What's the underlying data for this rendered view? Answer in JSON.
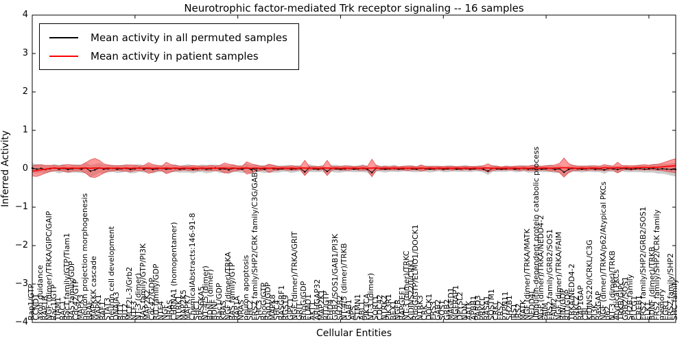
{
  "figure": {
    "title": "Neurotrophic factor-mediated Trk receptor signaling -- 16 samples",
    "xlabel": "Cellular Entities",
    "ylabel": "Inferred Activity",
    "sample_count_in_title": "16 samples"
  },
  "legend": {
    "items": [
      {
        "label": "Mean activity in all permuted samples",
        "color": "#000000"
      },
      {
        "label": "Mean activity in patient samples",
        "color": "#ff0000"
      }
    ]
  },
  "colors": {
    "permuted_line": "#000000",
    "patient_line": "#ff0000",
    "permuted_band": "#808080",
    "patient_band": "#ff4646",
    "background": "#ffffff",
    "axis": "#000000"
  },
  "chart_data": {
    "type": "line",
    "title": "Neurotrophic factor-mediated Trk receptor signaling -- 16 samples",
    "xlabel": "Cellular Entities",
    "ylabel": "Inferred Activity",
    "ylim": [
      -4,
      4
    ],
    "ytick_values": [
      4,
      3,
      2,
      1,
      0,
      -1,
      -2,
      -3,
      -4
    ],
    "ytick_labels": [
      "4",
      "3",
      "2",
      "1",
      "0",
      "−1",
      "−2",
      "−3",
      "−4"
    ],
    "x_major_tick_indices": [
      0,
      23,
      46,
      69,
      92,
      115,
      138
    ],
    "grid": false,
    "legend_position": "upper left",
    "entities": [
      "Rap1/GTP",
      "CCND1",
      "axon guidance",
      "RAP1B",
      "NGF (dimer)/TRKA/GIPC/GAIP",
      "Rac1/GTP",
      "TIAM1",
      "RAC1",
      "Rac1 family/GTP/Tiam1",
      "RAS family/GDP",
      "Cdc42/GTP",
      "MAPK3",
      "neuron projection morphogenesis",
      "BRAF",
      "MAPKKK cascade",
      "MAPK1",
      "RAF1",
      "STAT3",
      "neuron cell development",
      "DNAJA3",
      "RIT1",
      "RIT2",
      "MCF2L-3/Grb2",
      "NTF3",
      "NT-3 (dimer)",
      "RAS family/GTP/PI3K",
      "MAP2K2",
      "Cdc42/GDP",
      "RIT family/GDP",
      "NTF4",
      "NGF",
      "HRAS",
      "CHRNA1 (homopentamer)",
      "NTRK1",
      "MAP2K5",
      "MAPK7",
      "ChemicalAbstracts:146-91-8",
      "SHC1",
      "RPS6KA5",
      "NT-4/5 (dimer)",
      "BDNF (dimer)",
      "BDNF",
      "Rac1/GDP",
      "KRAS",
      "NGF (dimer)/TRKA",
      "RAS family/GTP",
      "RAP1A",
      "NRAS",
      "neuron apoptosis",
      "SHC2",
      "FRS2 family/SHP2/CRK family/C3G/GAB2",
      "SHC3",
      "RhoG/GTP",
      "Rap1/GDP",
      "MAPK8",
      "SHC4",
      "RASGRF1",
      "RGS19",
      "GIPC1",
      "NGF (dimer)/TRKA/GRIT",
      "GRIT",
      "RhoG/GDP",
      "ELMO1",
      "AKT1",
      "ARHGAP32",
      "MAP2K1",
      "RIT/GTP",
      "EHD4",
      "GRB2/SOS1/GAB1/PI3K",
      "SH2B2",
      "NT-4/5 (dimer)/TRKB",
      "GAB1",
      "APS",
      "STMN1",
      "ABL1",
      "PIK3CA",
      "NT-3 (dimer)",
      "SORT1",
      "CDC42",
      "NTRK2",
      "PIK3R1",
      "BEX1",
      "NGFR",
      "RAPGEF1",
      "NT-3 (dimer)/TRKC",
      "KIDINS220/CRKL",
      "RhoG/GTP/ELMO1/DOCK1",
      "NTRK3",
      "CRK",
      "DOCK1",
      "FRS3",
      "GAB2",
      "SOS1",
      "GRB2",
      "MAGED1",
      "NGFRAP1",
      "DPYSL2",
      "NDN",
      "AATK",
      "APBB1",
      "PARD3",
      "PRKCI",
      "RASA1",
      "SQSTM1",
      "CRKL",
      "FRS2",
      "PTPN11",
      "SH2B1",
      "IRS1",
      "IRS2",
      "MATK",
      "NGF (dimer)/TRKA/MATK",
      "NEDD4L",
      "ubiquitin-dependent protein catabolic process",
      "NGF (dimer)/TRKA/NEDD4-2",
      "FAIM",
      "FRS2 family/GRB2/SOS1",
      "FAIM2",
      "NGF (dimer)/TRKA/FAIM",
      "RIN/GDP",
      "RIT/GDP",
      "TRKA/NEDD4-2",
      "PRKCZ",
      "RAP1GAP",
      "CBL",
      "KIDINS220/CRKL/C3G",
      "PI3K",
      "RasGAP",
      "NGF (dimer)/TRKA/p62/Atypical PKCs",
      "p62",
      "NT-3 (dimer)/TRKB",
      "Atypical PKCs",
      "TRKB/GIPC",
      "GRB2/SOS1",
      "SH2B family",
      "PLCG1",
      "CREB1",
      "FRS2 family/SHP2/GRB2/SOS1",
      "ELK1",
      "BDNF (dimer)/TRKB",
      "FRS2 family/SHP2/CRK family",
      "memory",
      "EGR1",
      "FRS2 family/SHP2",
      "SHC family"
    ],
    "series": [
      {
        "name": "Mean activity in all permuted samples",
        "color": "#000000",
        "values": [
          0.02,
          -0.01,
          0.01,
          -0.02,
          0.0,
          0.02,
          -0.01,
          0.01,
          -0.02,
          0.0,
          0.01,
          -0.01,
          0.02,
          -0.06,
          -0.03,
          0.02,
          -0.01,
          0.0,
          0.01,
          -0.01,
          0.0,
          0.01,
          -0.02,
          0.0,
          0.02,
          -0.01,
          0.01,
          -0.02,
          0.0,
          0.01,
          -0.01,
          0.0,
          0.01,
          -0.01,
          0.0,
          0.01,
          -0.02,
          0.0,
          0.01,
          -0.01,
          0.0,
          0.02,
          -0.01,
          0.0,
          -0.03,
          0.01,
          0.0,
          -0.01,
          0.02,
          -0.02,
          0.01,
          0.0,
          -0.01,
          0.01,
          0.0,
          -0.01,
          0.0,
          0.01,
          -0.01,
          0.0,
          0.01,
          -0.08,
          0.02,
          0.0,
          -0.01,
          0.01,
          -0.07,
          0.01,
          0.0,
          -0.01,
          0.0,
          0.01,
          -0.01,
          0.0,
          0.01,
          -0.01,
          -0.1,
          0.02,
          0.0,
          -0.01,
          0.0,
          0.01,
          -0.01,
          0.0,
          0.01,
          0.0,
          -0.01,
          0.01,
          0.0,
          -0.01,
          0.0,
          0.01,
          -0.01,
          0.0,
          0.01,
          -0.01,
          0.0,
          0.01,
          -0.01,
          0.0,
          0.01,
          -0.01,
          -0.06,
          0.01,
          0.0,
          -0.01,
          0.0,
          0.01,
          -0.01,
          0.0,
          0.01,
          -0.01,
          0.0,
          0.01,
          -0.01,
          0.0,
          0.01,
          -0.02,
          0.0,
          -0.09,
          -0.02,
          0.01,
          0.0,
          -0.01,
          0.0,
          0.01,
          -0.01,
          0.0,
          -0.03,
          0.01,
          0.0,
          -0.02,
          0.01,
          0.0,
          -0.01,
          0.0,
          0.01,
          -0.01,
          0.0,
          0.01,
          -0.01,
          0.0,
          -0.01,
          -0.02,
          -0.02
        ]
      },
      {
        "name": "Mean activity in patient samples",
        "color": "#ff0000",
        "values": [
          -0.06,
          -0.05,
          -0.03,
          -0.01,
          0.01,
          0.02,
          0.01,
          0.02,
          0.01,
          0.02,
          0.01,
          0.02,
          0.02,
          0.01,
          0.02,
          0.02,
          0.01,
          0.02,
          0.01,
          0.02,
          0.01,
          0.02,
          0.01,
          0.02,
          0.01,
          0.02,
          0.02,
          0.01,
          0.02,
          0.01,
          0.02,
          0.01,
          0.02,
          0.01,
          0.02,
          0.01,
          0.02,
          0.01,
          0.02,
          0.01,
          0.02,
          0.01,
          0.02,
          0.02,
          0.01,
          0.02,
          0.01,
          0.02,
          0.02,
          0.01,
          0.02,
          0.01,
          0.02,
          0.01,
          0.02,
          0.01,
          0.02,
          0.01,
          0.02,
          0.01,
          0.02,
          0.02,
          0.01,
          0.02,
          0.01,
          0.02,
          0.02,
          0.01,
          0.02,
          0.01,
          0.02,
          0.01,
          0.02,
          0.01,
          0.02,
          0.01,
          0.02,
          0.02,
          0.01,
          0.02,
          0.01,
          0.02,
          0.01,
          0.02,
          0.01,
          0.02,
          0.01,
          0.02,
          0.01,
          0.02,
          0.01,
          0.02,
          0.01,
          0.02,
          0.01,
          0.02,
          0.01,
          0.02,
          0.01,
          0.02,
          0.01,
          0.02,
          0.02,
          0.01,
          0.02,
          0.01,
          0.02,
          0.01,
          0.02,
          0.01,
          0.02,
          0.01,
          0.02,
          0.01,
          0.02,
          0.02,
          0.01,
          0.02,
          0.02,
          0.03,
          0.02,
          0.02,
          0.01,
          0.02,
          0.01,
          0.02,
          0.02,
          0.01,
          0.03,
          0.02,
          0.02,
          0.03,
          0.02,
          0.03,
          0.02,
          0.03,
          0.03,
          0.04,
          0.03,
          0.04,
          0.04,
          0.05,
          0.06,
          0.07,
          0.08
        ]
      }
    ],
    "bands": [
      {
        "name": "std of permuted samples",
        "color": "#808080",
        "centered_on": "Mean activity in all permuted samples",
        "half_widths": [
          0.13,
          0.12,
          0.11,
          0.1,
          0.09,
          0.1,
          0.11,
          0.1,
          0.09,
          0.1,
          0.11,
          0.1,
          0.14,
          0.16,
          0.15,
          0.13,
          0.11,
          0.1,
          0.09,
          0.1,
          0.1,
          0.09,
          0.1,
          0.11,
          0.1,
          0.09,
          0.1,
          0.1,
          0.09,
          0.09,
          0.1,
          0.09,
          0.1,
          0.09,
          0.1,
          0.11,
          0.1,
          0.09,
          0.1,
          0.11,
          0.1,
          0.09,
          0.1,
          0.1,
          0.11,
          0.1,
          0.09,
          0.1,
          0.12,
          0.11,
          0.1,
          0.09,
          0.1,
          0.11,
          0.1,
          0.09,
          0.08,
          0.09,
          0.1,
          0.09,
          0.08,
          0.09,
          0.1,
          0.09,
          0.08,
          0.09,
          0.08,
          0.09,
          0.1,
          0.09,
          0.08,
          0.09,
          0.08,
          0.09,
          0.1,
          0.09,
          0.1,
          0.09,
          0.08,
          0.09,
          0.08,
          0.09,
          0.08,
          0.07,
          0.08,
          0.09,
          0.08,
          0.09,
          0.08,
          0.09,
          0.08,
          0.07,
          0.08,
          0.09,
          0.08,
          0.07,
          0.08,
          0.09,
          0.08,
          0.07,
          0.08,
          0.09,
          0.1,
          0.09,
          0.08,
          0.07,
          0.08,
          0.07,
          0.08,
          0.09,
          0.08,
          0.09,
          0.1,
          0.09,
          0.08,
          0.09,
          0.1,
          0.09,
          0.1,
          0.11,
          0.1,
          0.09,
          0.08,
          0.09,
          0.08,
          0.09,
          0.08,
          0.09,
          0.1,
          0.09,
          0.08,
          0.09,
          0.08,
          0.09,
          0.08,
          0.09,
          0.1,
          0.09,
          0.1,
          0.11,
          0.12,
          0.13,
          0.14,
          0.16,
          0.18
        ]
      },
      {
        "name": "std of patient samples",
        "color": "#ff4646",
        "centered_on": "Mean activity in patient samples",
        "half_widths": [
          0.13,
          0.15,
          0.13,
          0.1,
          0.08,
          0.07,
          0.06,
          0.08,
          0.1,
          0.08,
          0.07,
          0.08,
          0.14,
          0.22,
          0.25,
          0.2,
          0.12,
          0.08,
          0.07,
          0.06,
          0.07,
          0.08,
          0.09,
          0.07,
          0.06,
          0.07,
          0.14,
          0.1,
          0.07,
          0.06,
          0.15,
          0.1,
          0.07,
          0.06,
          0.05,
          0.06,
          0.07,
          0.06,
          0.05,
          0.06,
          0.07,
          0.06,
          0.07,
          0.13,
          0.11,
          0.08,
          0.06,
          0.05,
          0.16,
          0.12,
          0.08,
          0.06,
          0.05,
          0.11,
          0.07,
          0.05,
          0.04,
          0.05,
          0.06,
          0.05,
          0.04,
          0.2,
          0.05,
          0.04,
          0.05,
          0.04,
          0.2,
          0.05,
          0.04,
          0.05,
          0.06,
          0.05,
          0.04,
          0.05,
          0.06,
          0.05,
          0.23,
          0.06,
          0.04,
          0.05,
          0.04,
          0.05,
          0.04,
          0.05,
          0.06,
          0.05,
          0.04,
          0.08,
          0.05,
          0.04,
          0.05,
          0.04,
          0.05,
          0.04,
          0.05,
          0.04,
          0.05,
          0.04,
          0.05,
          0.04,
          0.05,
          0.06,
          0.11,
          0.06,
          0.05,
          0.04,
          0.05,
          0.04,
          0.05,
          0.06,
          0.05,
          0.06,
          0.07,
          0.06,
          0.05,
          0.06,
          0.07,
          0.08,
          0.12,
          0.25,
          0.12,
          0.07,
          0.06,
          0.05,
          0.06,
          0.05,
          0.06,
          0.05,
          0.08,
          0.06,
          0.05,
          0.14,
          0.06,
          0.05,
          0.06,
          0.05,
          0.06,
          0.07,
          0.06,
          0.07,
          0.08,
          0.1,
          0.13,
          0.16,
          0.18
        ]
      }
    ]
  }
}
